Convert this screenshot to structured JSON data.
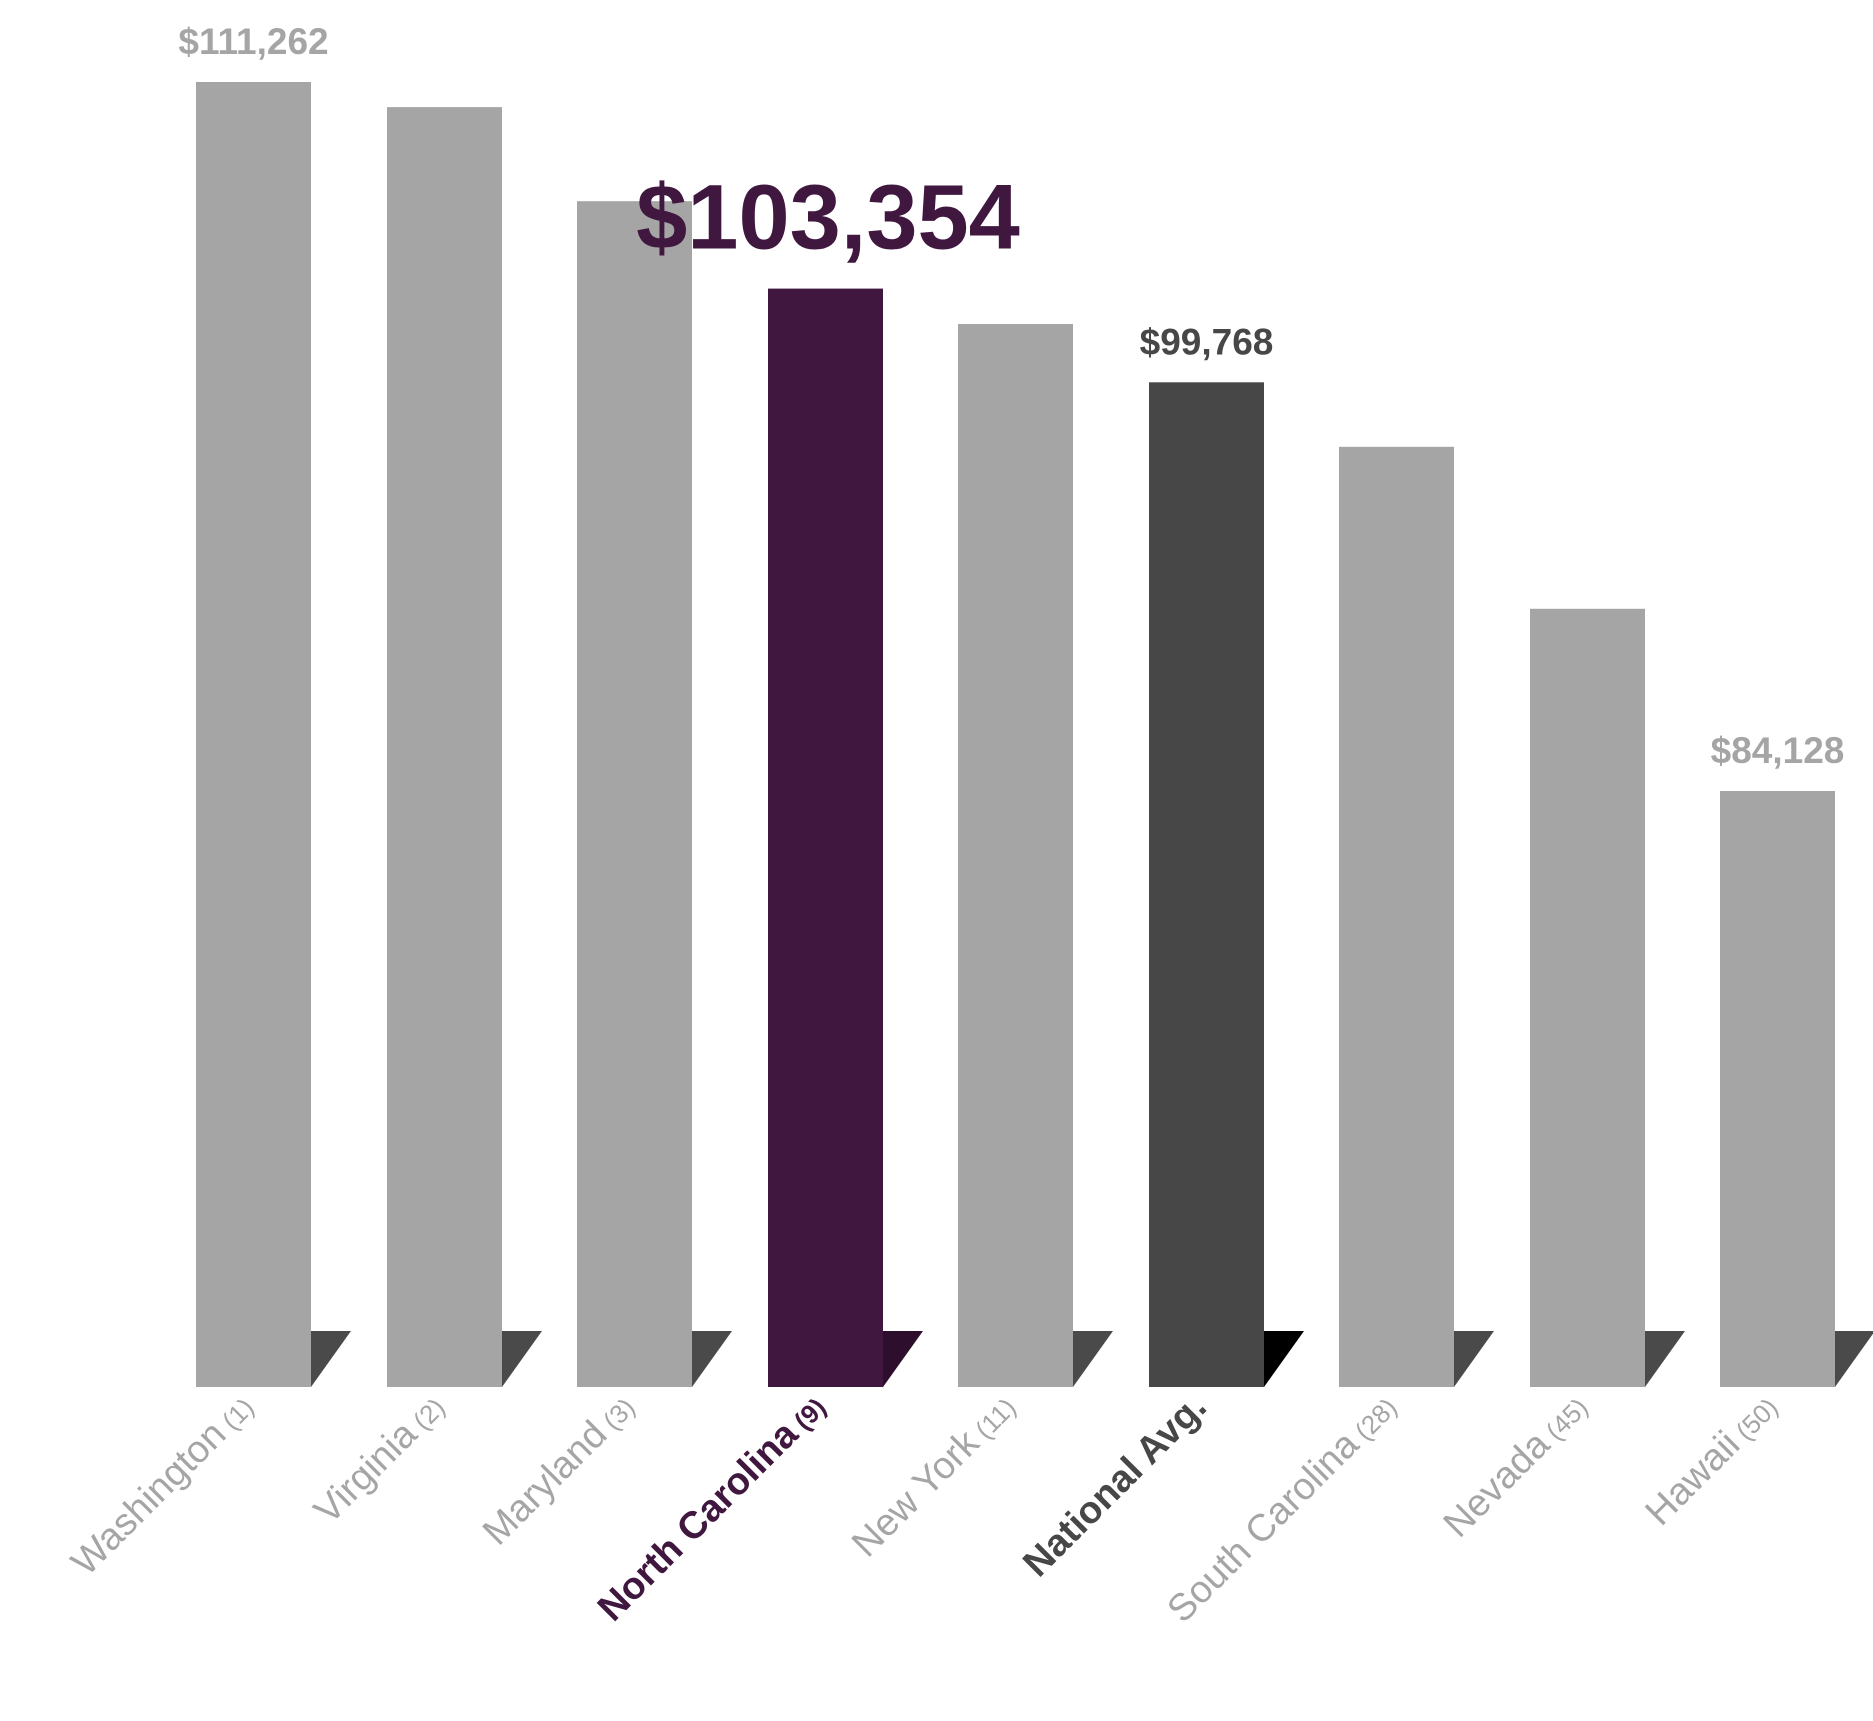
{
  "chart_data": {
    "type": "bar",
    "title": "",
    "xlabel": "",
    "ylabel": "",
    "grid": false,
    "legend": "none",
    "colors": {
      "default": "#a5a5a5",
      "default_shadow": "#4a4a4a",
      "highlight": "#40173f",
      "highlight_shadow": "#2e0e2d",
      "average": "#474747",
      "average_shadow": "#000000"
    },
    "categories": [
      {
        "name": "Washington",
        "rank": "(1)",
        "value": 111262,
        "style": "default",
        "label": "$111,262"
      },
      {
        "name": "Virginia",
        "rank": "(2)",
        "value": 110300,
        "style": "default",
        "label": ""
      },
      {
        "name": "Maryland",
        "rank": "(3)",
        "value": 106700,
        "style": "default",
        "label": ""
      },
      {
        "name": "North Carolina",
        "rank": "(9)",
        "value": 103354,
        "style": "highlight",
        "label": "$103,354"
      },
      {
        "name": "New York",
        "rank": "(11)",
        "value": 102000,
        "style": "default",
        "label": ""
      },
      {
        "name": "National Avg.",
        "rank": "",
        "value": 99768,
        "style": "average",
        "label": "$99,768"
      },
      {
        "name": "South Carolina",
        "rank": "(28)",
        "value": 97300,
        "style": "default",
        "label": ""
      },
      {
        "name": "Nevada",
        "rank": "(45)",
        "value": 91100,
        "style": "default",
        "label": ""
      },
      {
        "name": "Hawaii",
        "rank": "(50)",
        "value": 84128,
        "style": "default",
        "label": "$84,128"
      }
    ]
  }
}
